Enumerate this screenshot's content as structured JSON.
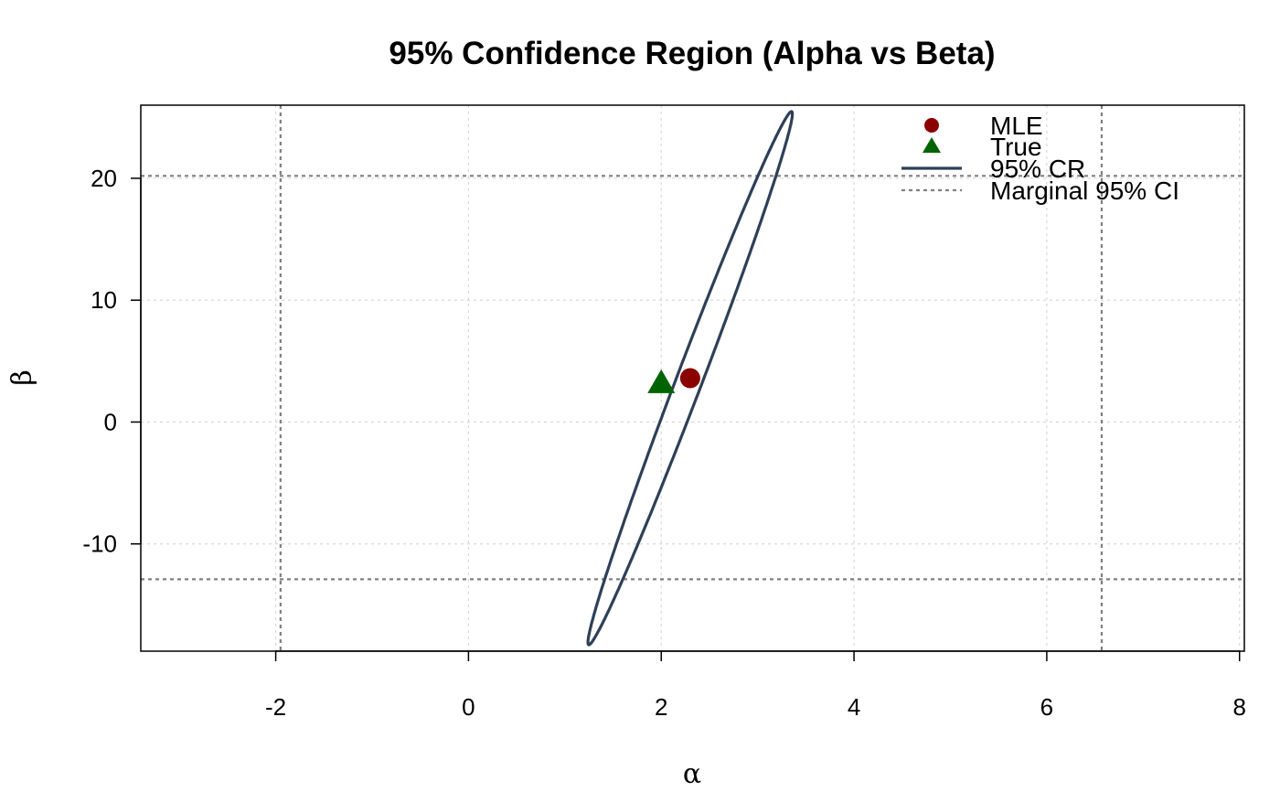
{
  "chart_data": {
    "type": "scatter",
    "title": "95% Confidence Region (Alpha vs Beta)",
    "xlabel": "α",
    "ylabel": "β",
    "xlim": [
      -3.4,
      8.05
    ],
    "ylim": [
      -18.8,
      26.0
    ],
    "xticks": [
      -2,
      0,
      2,
      4,
      6,
      8
    ],
    "yticks": [
      -10,
      0,
      10,
      20
    ],
    "grid": true,
    "legend_position": "top-right",
    "points": {
      "mle": {
        "x": 2.3,
        "y": 3.6
      },
      "true": {
        "x": 2.0,
        "y": 3.2
      }
    },
    "confidence_ellipse": {
      "center": [
        2.3,
        3.6
      ],
      "semi_axis_major": 22.4,
      "semi_axis_minor": 0.55,
      "angle_deg": 77.5
    },
    "marginal_ci": {
      "alpha": [
        -1.95,
        6.57
      ],
      "beta": [
        -12.9,
        20.2
      ]
    },
    "legend": [
      {
        "label": "MLE",
        "symbol": "circle",
        "color": "#8b0000"
      },
      {
        "label": "True",
        "symbol": "triangle",
        "color": "#006400"
      },
      {
        "label": "95% CR",
        "symbol": "solid-line",
        "color": "#2e4057"
      },
      {
        "label": "Marginal 95% CI",
        "symbol": "dashed-line",
        "color": "#808080"
      }
    ],
    "colors": {
      "ellipse": "#2e4057",
      "mle": "#8b0000",
      "true": "#006400",
      "ci": "#808080",
      "grid": "#d9d9d9"
    }
  }
}
